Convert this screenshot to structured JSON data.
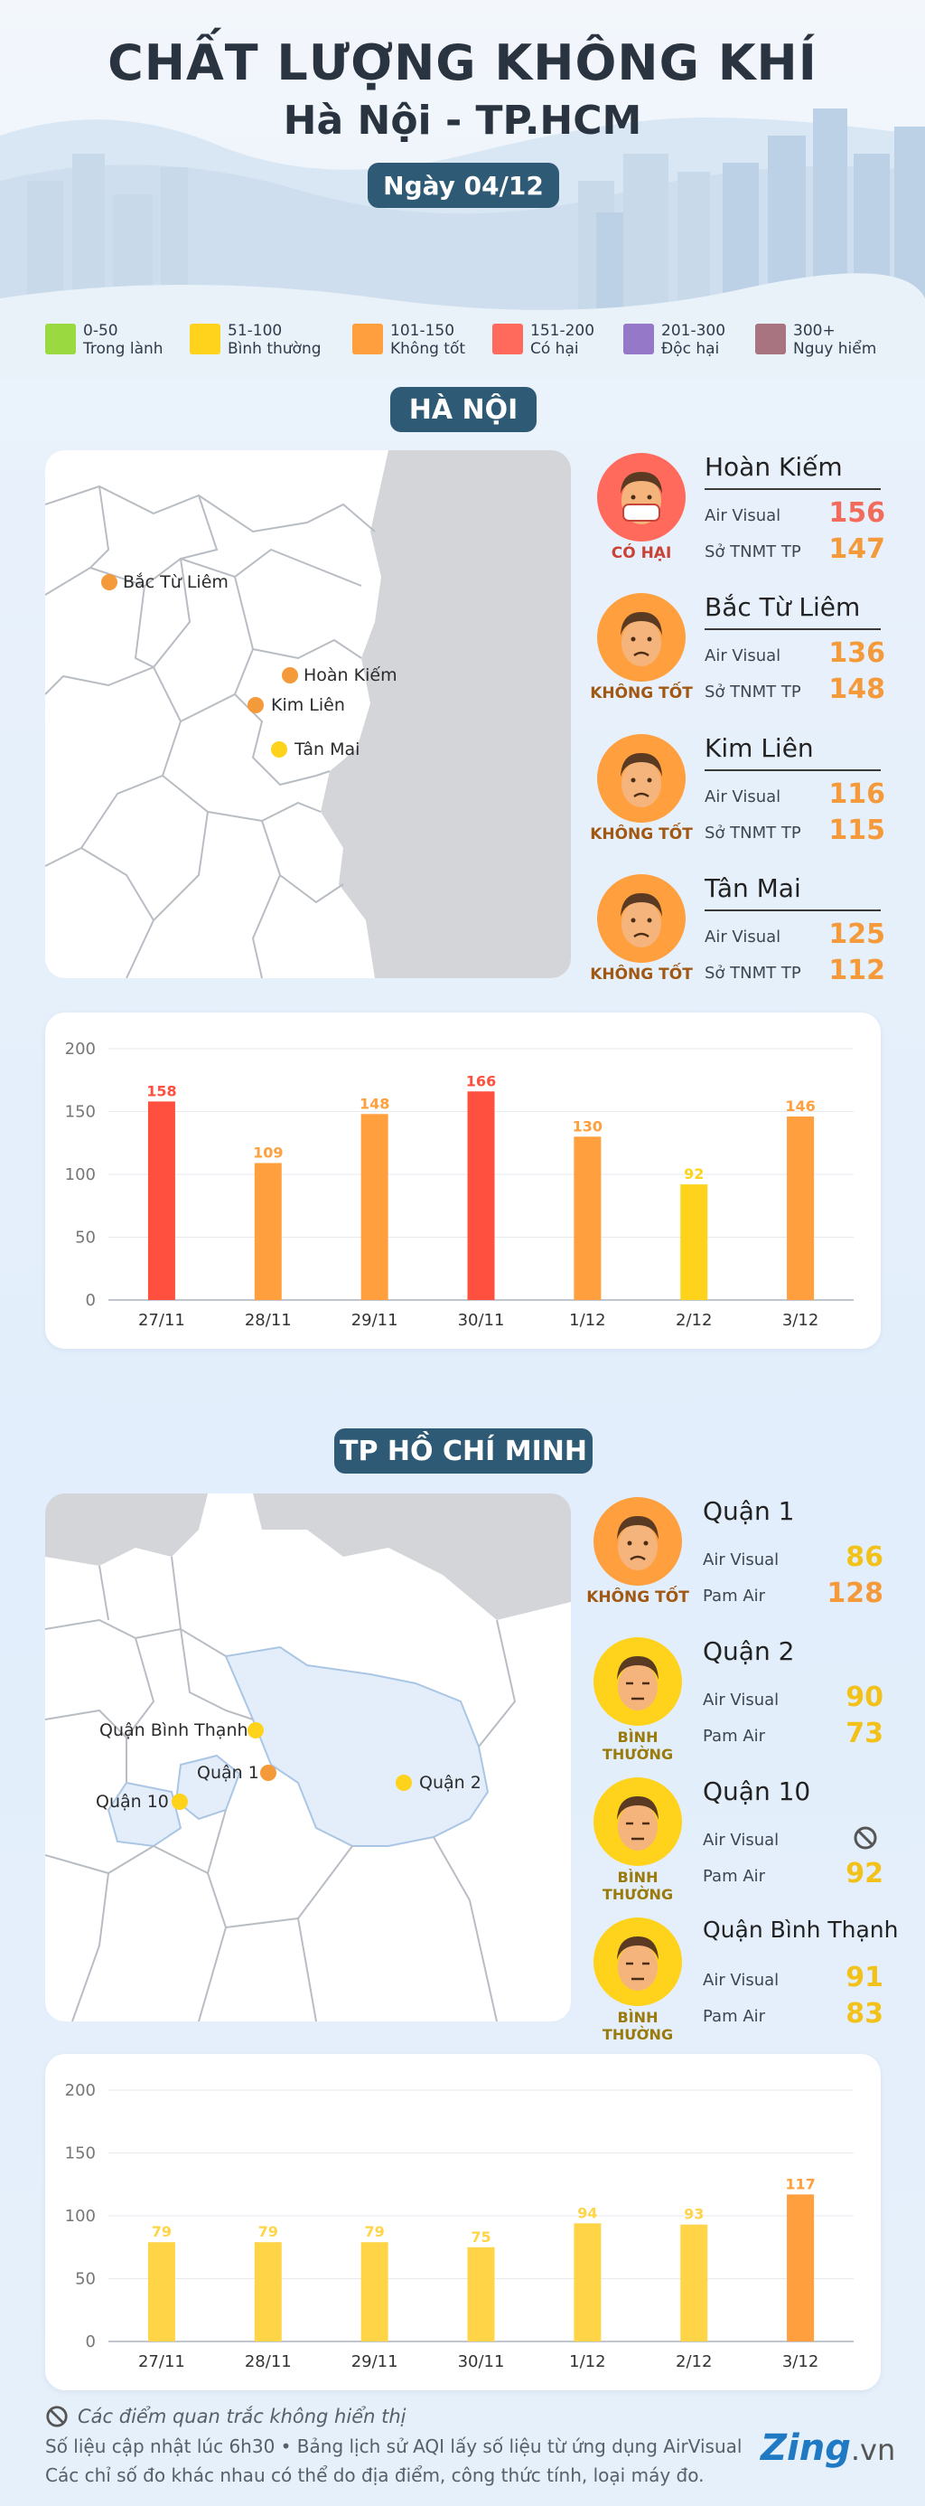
{
  "header": {
    "title": "CHẤT LƯỢNG KHÔNG KHÍ",
    "subtitle": "Hà Nội - TP.HCM",
    "date": "Ngày 04/12"
  },
  "legend": [
    {
      "range": "0-50",
      "label": "Trong lành",
      "color": "#9ad93f"
    },
    {
      "range": "51-100",
      "label": "Bình thường",
      "color": "#ffd21c"
    },
    {
      "range": "101-150",
      "label": "Không tốt",
      "color": "#ff9f3d"
    },
    {
      "range": "151-200",
      "label": "Có hại",
      "color": "#ff6a5c"
    },
    {
      "range": "201-300",
      "label": "Độc hại",
      "color": "#9678c8"
    },
    {
      "range": "300+",
      "label": "Nguy hiểm",
      "color": "#a87480"
    }
  ],
  "hanoi": {
    "section_label": "HÀ NỘI",
    "map_labels": [
      {
        "name": "Bắc Từ Liêm",
        "color": "#f59a3a"
      },
      {
        "name": "Hoàn Kiếm",
        "color": "#f59a3a"
      },
      {
        "name": "Kim Liên",
        "color": "#f59a3a"
      },
      {
        "name": "Tân Mai",
        "color": "#ffd21c"
      }
    ],
    "stations": [
      {
        "name": "Hoàn Kiếm",
        "status": "CÓ HẠI",
        "status_color": "#c94236",
        "face_color": "#ff6a5c",
        "sources": [
          {
            "label": "Air Visual",
            "value": "156"
          },
          {
            "label": "Sở TNMT TP",
            "value": "147"
          }
        ],
        "value_colors": [
          "#f26b5b",
          "#f59a3a"
        ]
      },
      {
        "name": "Bắc Từ Liêm",
        "status": "KHÔNG TỐT",
        "status_color": "#a05812",
        "face_color": "#ff9f3d",
        "sources": [
          {
            "label": "Air Visual",
            "value": "136"
          },
          {
            "label": "Sở TNMT TP",
            "value": "148"
          }
        ],
        "value_colors": [
          "#f59a3a",
          "#f59a3a"
        ]
      },
      {
        "name": "Kim Liên",
        "status": "KHÔNG TỐT",
        "status_color": "#a05812",
        "face_color": "#ff9f3d",
        "sources": [
          {
            "label": "Air Visual",
            "value": "116"
          },
          {
            "label": "Sở TNMT TP",
            "value": "115"
          }
        ],
        "value_colors": [
          "#f59a3a",
          "#f59a3a"
        ]
      },
      {
        "name": "Tân Mai",
        "status": "KHÔNG TỐT",
        "status_color": "#a05812",
        "face_color": "#ff9f3d",
        "sources": [
          {
            "label": "Air Visual",
            "value": "125"
          },
          {
            "label": "Sở TNMT TP",
            "value": "112"
          }
        ],
        "value_colors": [
          "#f59a3a",
          "#f59a3a"
        ]
      }
    ]
  },
  "hcm": {
    "section_label": "TP HỒ CHÍ MINH",
    "map_labels": [
      {
        "name": "Quận Bình Thạnh",
        "color": "#ffd21c"
      },
      {
        "name": "Quận 1",
        "color": "#f59a3a"
      },
      {
        "name": "Quận 2",
        "color": "#ffd21c"
      },
      {
        "name": "Quận 10",
        "color": "#ffd21c"
      }
    ],
    "stations": [
      {
        "name": "Quận 1",
        "status": "KHÔNG TỐT",
        "status_color": "#a05812",
        "face_color": "#ff9f3d",
        "sources": [
          {
            "label": "Air Visual",
            "value": "86"
          },
          {
            "label": "Pam Air",
            "value": "128"
          }
        ],
        "value_colors": [
          "#f2c21b",
          "#f59a3a"
        ]
      },
      {
        "name": "Quận 2",
        "status": "BÌNH THƯỜNG",
        "status_color": "#9a7a0a",
        "face_color": "#ffd21c",
        "sources": [
          {
            "label": "Air Visual",
            "value": "90"
          },
          {
            "label": "Pam Air",
            "value": "73"
          }
        ],
        "value_colors": [
          "#f2c21b",
          "#f2c21b"
        ]
      },
      {
        "name": "Quận 10",
        "status": "BÌNH THƯỜNG",
        "status_color": "#9a7a0a",
        "face_color": "#ffd21c",
        "sources": [
          {
            "label": "Air Visual",
            "value": "",
            "icon": "not-displayed-icon"
          },
          {
            "label": "Pam Air",
            "value": "92"
          }
        ],
        "value_colors": [
          "#555",
          "#f2c21b"
        ]
      },
      {
        "name": "Quận Bình Thạnh",
        "status": "BÌNH THƯỜNG",
        "status_color": "#9a7a0a",
        "face_color": "#ffd21c",
        "sources": [
          {
            "label": "Air Visual",
            "value": "91"
          },
          {
            "label": "Pam Air",
            "value": "83"
          }
        ],
        "value_colors": [
          "#f2c21b",
          "#f2c21b"
        ]
      }
    ]
  },
  "chart_data": [
    {
      "type": "bar",
      "categories": [
        "27/11",
        "28/11",
        "29/11",
        "30/11",
        "1/12",
        "2/12",
        "3/12"
      ],
      "values": [
        158,
        109,
        148,
        166,
        130,
        92,
        146
      ],
      "ylim": [
        0,
        200
      ],
      "yticks": [
        0,
        50,
        100,
        150,
        200
      ],
      "colors": [
        "#ff4f3f",
        "#ff9f3d",
        "#ff9f3d",
        "#ff4f3f",
        "#ff9f3d",
        "#ffd21c",
        "#ff9f3d"
      ]
    },
    {
      "type": "bar",
      "categories": [
        "27/11",
        "28/11",
        "29/11",
        "30/11",
        "1/12",
        "2/12",
        "3/12"
      ],
      "values": [
        79,
        79,
        79,
        75,
        94,
        93,
        117
      ],
      "ylim": [
        0,
        200
      ],
      "yticks": [
        0,
        50,
        100,
        150,
        200
      ],
      "colors": [
        "#ffd447",
        "#ffd447",
        "#ffd447",
        "#ffd447",
        "#ffd447",
        "#ffd447",
        "#ff9f3d"
      ]
    }
  ],
  "footer": {
    "note1": "Các điểm quan trắc không hiển thị",
    "note2": "Số liệu cập nhật lúc 6h30 • Bảng lịch sử AQI lấy số liệu từ ứng dụng AirVisual",
    "note3": "Các chỉ số đo khác nhau có thể do địa điểm, công thức tính, loại máy đo.",
    "brand_a": "Zing",
    "brand_b": ".vn"
  }
}
